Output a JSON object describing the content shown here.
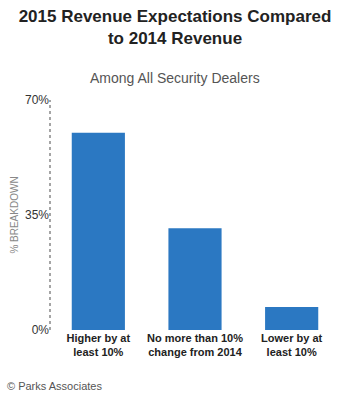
{
  "chart_data": {
    "type": "bar",
    "title": "2015 Revenue Expectations Compared to 2014 Revenue",
    "subtitle": "Among All Security Dealers",
    "y_label": "% BREAKDOWN",
    "categories": [
      "Higher by at least 10%",
      "No more than 10% change from 2014",
      "Lower by at least 10%"
    ],
    "values": [
      60,
      31,
      7
    ],
    "color": "#2b78c2",
    "ylim": [
      0,
      70
    ],
    "yticks": [
      {
        "value": 0,
        "label": "0%"
      },
      {
        "value": 35,
        "label": "35%"
      },
      {
        "value": 70,
        "label": "70%"
      }
    ],
    "grid": false,
    "annotations": [
      "© Parks Associates"
    ]
  }
}
